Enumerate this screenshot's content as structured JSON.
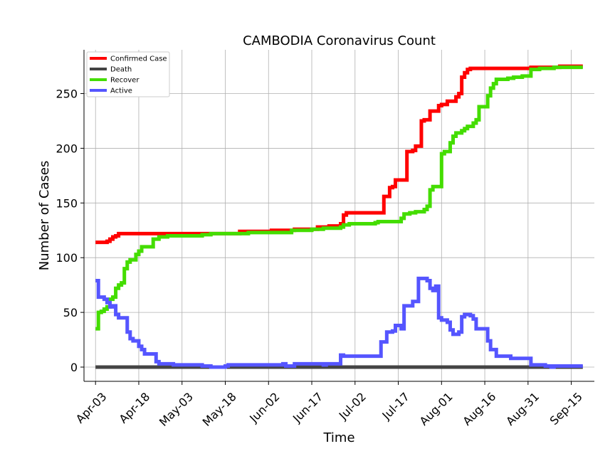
{
  "chart_data": {
    "type": "line",
    "title": "CAMBODIA Coronavirus Count",
    "xlabel": "Time",
    "ylabel": "Number of Cases",
    "x_start": "2020-04-03",
    "x_end": "2020-09-19",
    "xlim": [
      "2020-03-30",
      "2020-09-23"
    ],
    "ylim": [
      -13,
      290
    ],
    "yticks": [
      0,
      50,
      100,
      150,
      200,
      250
    ],
    "xticks": [
      {
        "date": "2020-04-03",
        "label": "Apr-03"
      },
      {
        "date": "2020-04-18",
        "label": "Apr-18"
      },
      {
        "date": "2020-05-03",
        "label": "May-03"
      },
      {
        "date": "2020-05-18",
        "label": "May-18"
      },
      {
        "date": "2020-06-02",
        "label": "Jun-02"
      },
      {
        "date": "2020-06-17",
        "label": "Jun-17"
      },
      {
        "date": "2020-07-02",
        "label": "Jul-02"
      },
      {
        "date": "2020-07-17",
        "label": "Jul-17"
      },
      {
        "date": "2020-08-01",
        "label": "Aug-01"
      },
      {
        "date": "2020-08-16",
        "label": "Aug-16"
      },
      {
        "date": "2020-08-31",
        "label": "Aug-31"
      },
      {
        "date": "2020-09-15",
        "label": "Sep-15"
      }
    ],
    "grid": true,
    "legend_position": "top-left",
    "series": [
      {
        "name": "Confirmed Case",
        "color": "#ff0000",
        "points": [
          [
            "2020-04-03",
            114
          ],
          [
            "2020-04-07",
            115
          ],
          [
            "2020-04-08",
            117
          ],
          [
            "2020-04-09",
            119
          ],
          [
            "2020-04-10",
            120
          ],
          [
            "2020-04-11",
            122
          ],
          [
            "2020-05-13",
            122
          ],
          [
            "2020-05-23",
            124
          ],
          [
            "2020-06-03",
            125
          ],
          [
            "2020-06-11",
            126
          ],
          [
            "2020-06-19",
            128
          ],
          [
            "2020-06-23",
            129
          ],
          [
            "2020-06-27",
            131
          ],
          [
            "2020-06-28",
            139
          ],
          [
            "2020-06-29",
            141
          ],
          [
            "2020-07-12",
            156
          ],
          [
            "2020-07-14",
            164
          ],
          [
            "2020-07-15",
            165
          ],
          [
            "2020-07-16",
            171
          ],
          [
            "2020-07-20",
            197
          ],
          [
            "2020-07-22",
            198
          ],
          [
            "2020-07-23",
            202
          ],
          [
            "2020-07-25",
            225
          ],
          [
            "2020-07-26",
            226
          ],
          [
            "2020-07-28",
            234
          ],
          [
            "2020-07-31",
            239
          ],
          [
            "2020-08-01",
            240
          ],
          [
            "2020-08-03",
            243
          ],
          [
            "2020-08-06",
            247
          ],
          [
            "2020-08-07",
            250
          ],
          [
            "2020-08-08",
            265
          ],
          [
            "2020-08-09",
            269
          ],
          [
            "2020-08-10",
            272
          ],
          [
            "2020-08-11",
            273
          ],
          [
            "2020-09-01",
            274
          ],
          [
            "2020-09-11",
            275
          ],
          [
            "2020-09-19",
            275
          ]
        ]
      },
      {
        "name": "Death",
        "color": "#444444",
        "points": [
          [
            "2020-04-03",
            0
          ],
          [
            "2020-09-19",
            0
          ]
        ]
      },
      {
        "name": "Recover",
        "color": "#44dd00",
        "points": [
          [
            "2020-04-03",
            35
          ],
          [
            "2020-04-04",
            50
          ],
          [
            "2020-04-05",
            51
          ],
          [
            "2020-04-06",
            53
          ],
          [
            "2020-04-07",
            55
          ],
          [
            "2020-04-08",
            62
          ],
          [
            "2020-04-09",
            64
          ],
          [
            "2020-04-10",
            72
          ],
          [
            "2020-04-11",
            75
          ],
          [
            "2020-04-12",
            77
          ],
          [
            "2020-04-13",
            90
          ],
          [
            "2020-04-14",
            96
          ],
          [
            "2020-04-15",
            98
          ],
          [
            "2020-04-17",
            103
          ],
          [
            "2020-04-18",
            106
          ],
          [
            "2020-04-19",
            110
          ],
          [
            "2020-04-23",
            117
          ],
          [
            "2020-04-25",
            119
          ],
          [
            "2020-04-28",
            120
          ],
          [
            "2020-05-10",
            121
          ],
          [
            "2020-05-13",
            122
          ],
          [
            "2020-05-25",
            122
          ],
          [
            "2020-05-26",
            123
          ],
          [
            "2020-06-07",
            123
          ],
          [
            "2020-06-10",
            125
          ],
          [
            "2020-06-17",
            126
          ],
          [
            "2020-06-21",
            127
          ],
          [
            "2020-06-27",
            128
          ],
          [
            "2020-06-28",
            130
          ],
          [
            "2020-06-30",
            131
          ],
          [
            "2020-07-09",
            132
          ],
          [
            "2020-07-10",
            133
          ],
          [
            "2020-07-16",
            133
          ],
          [
            "2020-07-18",
            136
          ],
          [
            "2020-07-19",
            140
          ],
          [
            "2020-07-21",
            141
          ],
          [
            "2020-07-23",
            142
          ],
          [
            "2020-07-26",
            144
          ],
          [
            "2020-07-27",
            147
          ],
          [
            "2020-07-28",
            162
          ],
          [
            "2020-07-29",
            165
          ],
          [
            "2020-08-01",
            195
          ],
          [
            "2020-08-02",
            197
          ],
          [
            "2020-08-04",
            205
          ],
          [
            "2020-08-05",
            211
          ],
          [
            "2020-08-06",
            214
          ],
          [
            "2020-08-08",
            216
          ],
          [
            "2020-08-09",
            218
          ],
          [
            "2020-08-10",
            220
          ],
          [
            "2020-08-12",
            223
          ],
          [
            "2020-08-13",
            226
          ],
          [
            "2020-08-14",
            238
          ],
          [
            "2020-08-17",
            248
          ],
          [
            "2020-08-18",
            255
          ],
          [
            "2020-08-19",
            259
          ],
          [
            "2020-08-20",
            263
          ],
          [
            "2020-08-24",
            264
          ],
          [
            "2020-08-26",
            265
          ],
          [
            "2020-08-29",
            266
          ],
          [
            "2020-09-01",
            272
          ],
          [
            "2020-09-04",
            273
          ],
          [
            "2020-09-09",
            274
          ],
          [
            "2020-09-19",
            274
          ]
        ]
      },
      {
        "name": "Active",
        "color": "#5555ff",
        "points": [
          [
            "2020-04-03",
            79
          ],
          [
            "2020-04-04",
            64
          ],
          [
            "2020-04-06",
            62
          ],
          [
            "2020-04-07",
            59
          ],
          [
            "2020-04-08",
            55
          ],
          [
            "2020-04-09",
            56
          ],
          [
            "2020-04-10",
            48
          ],
          [
            "2020-04-11",
            45
          ],
          [
            "2020-04-14",
            32
          ],
          [
            "2020-04-15",
            26
          ],
          [
            "2020-04-16",
            24
          ],
          [
            "2020-04-18",
            19
          ],
          [
            "2020-04-19",
            16
          ],
          [
            "2020-04-20",
            12
          ],
          [
            "2020-04-24",
            5
          ],
          [
            "2020-04-25",
            3
          ],
          [
            "2020-04-30",
            2
          ],
          [
            "2020-05-10",
            1
          ],
          [
            "2020-05-13",
            0
          ],
          [
            "2020-05-18",
            1
          ],
          [
            "2020-05-19",
            2
          ],
          [
            "2020-06-07",
            3
          ],
          [
            "2020-06-08",
            1
          ],
          [
            "2020-06-11",
            3
          ],
          [
            "2020-06-17",
            3
          ],
          [
            "2020-06-21",
            2
          ],
          [
            "2020-06-22",
            3
          ],
          [
            "2020-06-27",
            11
          ],
          [
            "2020-06-28",
            10
          ],
          [
            "2020-07-11",
            23
          ],
          [
            "2020-07-13",
            32
          ],
          [
            "2020-07-15",
            33
          ],
          [
            "2020-07-16",
            38
          ],
          [
            "2020-07-18",
            35
          ],
          [
            "2020-07-19",
            56
          ],
          [
            "2020-07-22",
            60
          ],
          [
            "2020-07-24",
            81
          ],
          [
            "2020-07-27",
            79
          ],
          [
            "2020-07-28",
            72
          ],
          [
            "2020-07-29",
            70
          ],
          [
            "2020-07-30",
            74
          ],
          [
            "2020-07-31",
            45
          ],
          [
            "2020-08-01",
            43
          ],
          [
            "2020-08-03",
            41
          ],
          [
            "2020-08-04",
            34
          ],
          [
            "2020-08-05",
            30
          ],
          [
            "2020-08-07",
            32
          ],
          [
            "2020-08-08",
            46
          ],
          [
            "2020-08-09",
            48
          ],
          [
            "2020-08-11",
            47
          ],
          [
            "2020-08-12",
            44
          ],
          [
            "2020-08-13",
            35
          ],
          [
            "2020-08-17",
            24
          ],
          [
            "2020-08-18",
            16
          ],
          [
            "2020-08-20",
            10
          ],
          [
            "2020-08-25",
            8
          ],
          [
            "2020-08-31",
            8
          ],
          [
            "2020-09-01",
            2
          ],
          [
            "2020-09-06",
            1
          ],
          [
            "2020-09-08",
            0
          ],
          [
            "2020-09-09",
            1
          ],
          [
            "2020-09-19",
            1
          ]
        ]
      }
    ]
  }
}
